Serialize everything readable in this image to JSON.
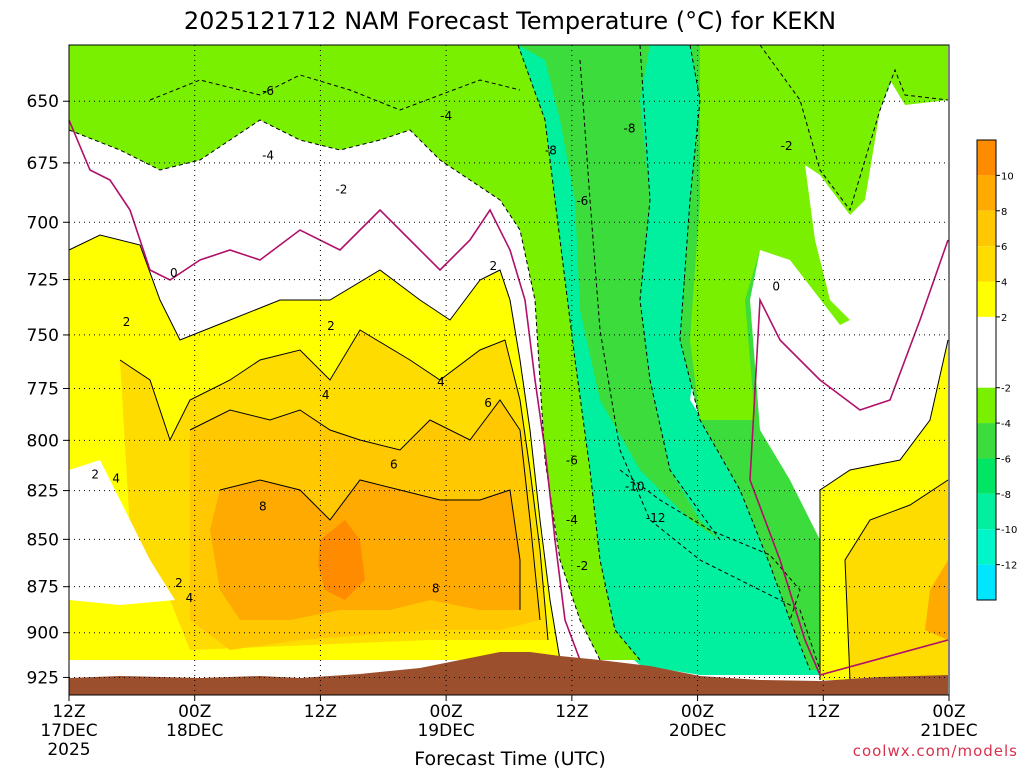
{
  "title": "2025121712 NAM Forecast Temperature (°C) for KEKN",
  "credit": "coolwx.com/models",
  "colors": {
    "band_m14": "#00e6ff",
    "band_m12": "#00f0e0",
    "band_m10": "#00f5c8",
    "band_m8": "#00f0a0",
    "band_m6": "#00e664",
    "band_m4": "#3cdc3c",
    "band_m2": "#78f000",
    "band_0": "#ffffff",
    "band_2": "#ffff00",
    "band_4": "#ffdc00",
    "band_6": "#ffc800",
    "band_8": "#ffaa00",
    "band_10": "#ff8c00",
    "terrain": "#9c4f2c",
    "freezing_line": "#b0106a"
  },
  "chart_data": {
    "type": "heatmap",
    "title": "2025121712 NAM Forecast Temperature (°C) for KEKN",
    "xlabel": "Forecast Time (UTC)",
    "ylabel": "",
    "x_ticks": [
      {
        "hour": 0,
        "label1": "12Z",
        "label2": "17DEC",
        "label3": "2025"
      },
      {
        "hour": 12,
        "label1": "00Z",
        "label2": "18DEC",
        "label3": ""
      },
      {
        "hour": 24,
        "label1": "12Z",
        "label2": "",
        "label3": ""
      },
      {
        "hour": 36,
        "label1": "00Z",
        "label2": "19DEC",
        "label3": ""
      },
      {
        "hour": 48,
        "label1": "12Z",
        "label2": "",
        "label3": ""
      },
      {
        "hour": 60,
        "label1": "00Z",
        "label2": "20DEC",
        "label3": ""
      },
      {
        "hour": 72,
        "label1": "12Z",
        "label2": "",
        "label3": ""
      },
      {
        "hour": 84,
        "label1": "00Z",
        "label2": "21DEC",
        "label3": ""
      }
    ],
    "xlim": [
      0,
      84
    ],
    "y_ticks": [
      "650",
      "675",
      "700",
      "725",
      "750",
      "775",
      "800",
      "825",
      "850",
      "875",
      "900",
      "925"
    ],
    "ylim": [
      628,
      935
    ],
    "y_scale": "log-pressure",
    "grid": true,
    "colorbar": {
      "ticks": [
        "10",
        "8",
        "6",
        "4",
        "2",
        "-2",
        "-4",
        "-6",
        "-8",
        "-10",
        "-12"
      ],
      "range": [
        -14,
        12
      ]
    },
    "contour_labels": [
      {
        "text": "-6",
        "hour": 19.0,
        "p": 646
      },
      {
        "text": "-4",
        "hour": 19.0,
        "p": 672
      },
      {
        "text": "-4",
        "hour": 36.0,
        "p": 656
      },
      {
        "text": "-2",
        "hour": 26.0,
        "p": 686
      },
      {
        "text": "0",
        "hour": 10.0,
        "p": 722
      },
      {
        "text": "2",
        "hour": 5.5,
        "p": 744
      },
      {
        "text": "2",
        "hour": 25.0,
        "p": 746
      },
      {
        "text": "2",
        "hour": 40.5,
        "p": 719
      },
      {
        "text": "4",
        "hour": 24.5,
        "p": 778
      },
      {
        "text": "4",
        "hour": 35.5,
        "p": 772
      },
      {
        "text": "6",
        "hour": 40.0,
        "p": 782
      },
      {
        "text": "6",
        "hour": 31.0,
        "p": 812
      },
      {
        "text": "8",
        "hour": 18.5,
        "p": 833
      },
      {
        "text": "8",
        "hour": 35.0,
        "p": 876
      },
      {
        "text": "2",
        "hour": 2.5,
        "p": 817
      },
      {
        "text": "4",
        "hour": 4.5,
        "p": 819
      },
      {
        "text": "2",
        "hour": 10.5,
        "p": 873
      },
      {
        "text": "4",
        "hour": 11.5,
        "p": 881
      },
      {
        "text": "-8",
        "hour": 46.0,
        "p": 670
      },
      {
        "text": "-8",
        "hour": 53.5,
        "p": 661
      },
      {
        "text": "-6",
        "hour": 49.0,
        "p": 691
      },
      {
        "text": "-2",
        "hour": 68.5,
        "p": 668
      },
      {
        "text": "0",
        "hour": 67.5,
        "p": 728
      },
      {
        "text": "-6",
        "hour": 48.0,
        "p": 810
      },
      {
        "text": "-4",
        "hour": 48.0,
        "p": 840
      },
      {
        "text": "-2",
        "hour": 49.0,
        "p": 864
      },
      {
        "text": "-10",
        "hour": 54.0,
        "p": 823
      },
      {
        "text": "-12",
        "hour": 56.0,
        "p": 839
      }
    ]
  }
}
